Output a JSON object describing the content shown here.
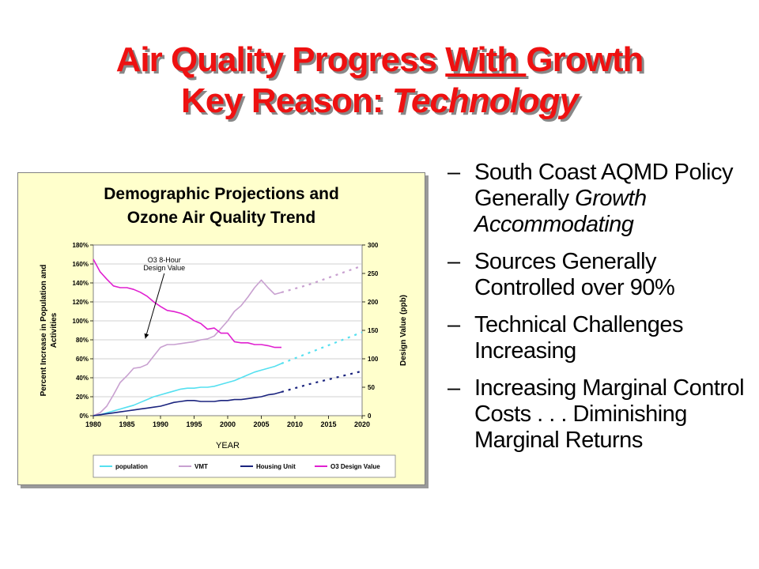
{
  "slide": {
    "title_line1_a": "Air Quality Progress ",
    "title_line1_b": "With ",
    "title_line1_c": "Growth",
    "title_line2_a": "Key Reason: ",
    "title_line2_b": "Technology",
    "bullets": [
      {
        "dash": "–",
        "text": "South Coast AQMD Policy Generally ",
        "em": "Growth Accommodating",
        "after": ""
      },
      {
        "dash": "–",
        "text": "Sources Generally Controlled over 90%",
        "em": "",
        "after": ""
      },
      {
        "dash": "–",
        "text": "Technical Challenges Increasing",
        "em": "",
        "after": ""
      },
      {
        "dash": "–",
        "text": "Increasing Marginal Control Costs . . . Diminishing Marginal Returns",
        "em": "",
        "after": ""
      }
    ]
  },
  "chart_data": {
    "type": "line",
    "title_line1": "Demographic Projections and",
    "title_line2": "Ozone Air Quality Trend",
    "xlabel": "YEAR",
    "ylabel_left_line1": "Percent Increase in Population and",
    "ylabel_left_line2": "Activities",
    "ylabel_right": "Design Value (ppb)",
    "xlim": [
      1980,
      2020
    ],
    "x_ticks": [
      "1980",
      "1985",
      "1990",
      "1995",
      "2000",
      "2005",
      "2010",
      "2015",
      "2020"
    ],
    "ylim_left": [
      0,
      180
    ],
    "y_ticks_left": [
      "0%",
      "20%",
      "40%",
      "60%",
      "80%",
      "100%",
      "120%",
      "140%",
      "160%",
      "180%"
    ],
    "ylim_right": [
      0,
      300
    ],
    "y_ticks_right": [
      "0",
      "50",
      "100",
      "150",
      "200",
      "250",
      "300"
    ],
    "annotation": {
      "line1": "O3 8-Hour",
      "line2": "Design Value",
      "x": 1987.5,
      "y": 130
    },
    "legend_position": "bottom",
    "colors": {
      "plot_bg": "#ffffff",
      "chart_bg": "#ffffcc",
      "grid": "#c0c0c0"
    },
    "series": [
      {
        "name": "population",
        "color": "#55e0f0",
        "axis": "left",
        "x": [
          1980,
          1981,
          1982,
          1983,
          1984,
          1985,
          1986,
          1987,
          1988,
          1989,
          1990,
          1991,
          1992,
          1993,
          1994,
          1995,
          1996,
          1997,
          1998,
          1999,
          2000,
          2001,
          2002,
          2003,
          2004,
          2005,
          2006,
          2007,
          2008
        ],
        "y": [
          0,
          1,
          3,
          5,
          7,
          9,
          11,
          14,
          17,
          20,
          22,
          24,
          26,
          28,
          29,
          29,
          30,
          30,
          31,
          33,
          35,
          37,
          40,
          43,
          46,
          48,
          50,
          52,
          55
        ],
        "projection_x": [
          2008,
          2012,
          2016,
          2020
        ],
        "projection_y": [
          55,
          66,
          77,
          88
        ]
      },
      {
        "name": "VMT",
        "color": "#c8a0d0",
        "axis": "left",
        "x": [
          1980,
          1981,
          1982,
          1983,
          1984,
          1985,
          1986,
          1987,
          1988,
          1989,
          1990,
          1991,
          1992,
          1993,
          1994,
          1995,
          1996,
          1997,
          1998,
          1999,
          2000,
          2001,
          2002,
          2003,
          2004,
          2005,
          2006,
          2007,
          2008
        ],
        "y": [
          0,
          3,
          10,
          22,
          35,
          42,
          50,
          51,
          54,
          63,
          72,
          75,
          75,
          76,
          77,
          78,
          80,
          81,
          84,
          92,
          100,
          110,
          116,
          125,
          135,
          143,
          135,
          128,
          130
        ],
        "projection_x": [
          2008,
          2012,
          2016,
          2020
        ],
        "projection_y": [
          130,
          138,
          148,
          158
        ]
      },
      {
        "name": "Housing Unit",
        "color": "#1a237e",
        "axis": "left",
        "x": [
          1980,
          1981,
          1982,
          1983,
          1984,
          1985,
          1986,
          1987,
          1988,
          1989,
          1990,
          1991,
          1992,
          1993,
          1994,
          1995,
          1996,
          1997,
          1998,
          1999,
          2000,
          2001,
          2002,
          2003,
          2004,
          2005,
          2006,
          2007,
          2008
        ],
        "y": [
          0,
          1,
          2,
          3,
          4,
          5,
          6,
          7,
          8,
          9,
          10,
          12,
          14,
          15,
          16,
          16,
          15,
          15,
          15,
          16,
          16,
          17,
          17,
          18,
          19,
          20,
          22,
          23,
          25
        ],
        "projection_x": [
          2008,
          2012,
          2016,
          2020
        ],
        "projection_y": [
          25,
          33,
          40,
          47
        ]
      },
      {
        "name": "O3 Design Value",
        "color": "#e020d0",
        "axis": "right",
        "x": [
          1980,
          1981,
          1982,
          1983,
          1984,
          1985,
          1986,
          1987,
          1988,
          1989,
          1990,
          1991,
          1992,
          1993,
          1994,
          1995,
          1996,
          1997,
          1998,
          1999,
          2000,
          2001,
          2002,
          2003,
          2004,
          2005,
          2006,
          2007,
          2008
        ],
        "y": [
          275,
          253,
          240,
          228,
          225,
          225,
          222,
          217,
          210,
          200,
          192,
          185,
          183,
          180,
          175,
          167,
          162,
          152,
          154,
          145,
          145,
          130,
          128,
          128,
          125,
          125,
          123,
          120,
          120
        ]
      }
    ]
  }
}
